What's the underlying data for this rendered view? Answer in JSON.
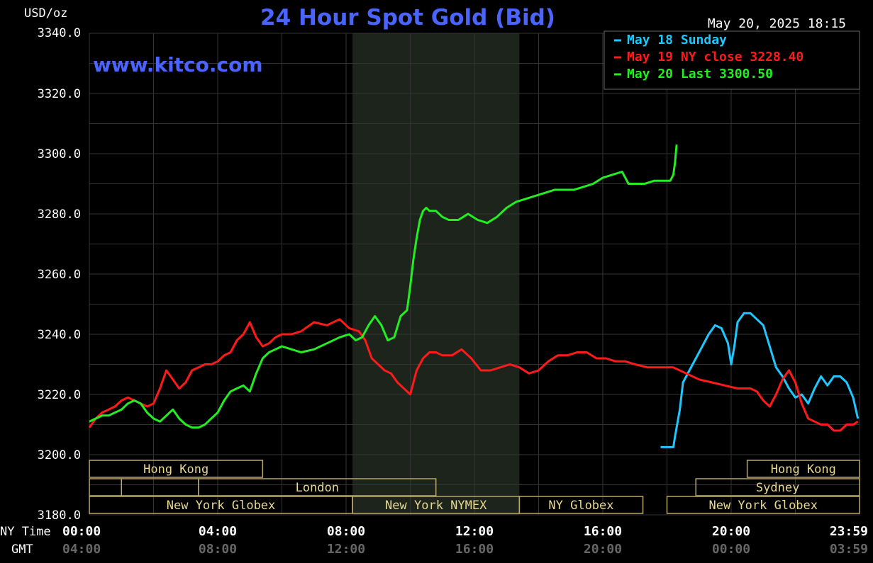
{
  "header": {
    "unit": "USD/oz",
    "title": "24 Hour Spot Gold (Bid)",
    "timestamp": "May 20, 2025 18:15",
    "watermark": "www.kitco.com"
  },
  "colors": {
    "title": "#4a64ff",
    "watermark": "#4a64ff",
    "grid": "#333333",
    "axis_text": "#ffffff",
    "gmt_text": "#666666",
    "session_border": "#b8a86a",
    "session_text": "#e8d890",
    "shade": "#1c241c"
  },
  "labels": {
    "ny_time": "NY Time",
    "gmt": "GMT"
  },
  "chart_data": {
    "type": "line",
    "title": "24 Hour Spot Gold (Bid)",
    "ylabel": "USD/oz",
    "ylim": [
      3180,
      3340
    ],
    "xlim": [
      0,
      24
    ],
    "grid": true,
    "legend_position": "top-right",
    "y_ticks": [
      "3340.0",
      "3320.0",
      "3300.0",
      "3280.0",
      "3260.0",
      "3240.0",
      "3220.0",
      "3200.0",
      "3180.0"
    ],
    "x_ticks": [
      {
        "ny": "00:00",
        "gmt": "04:00",
        "x": 0
      },
      {
        "ny": "04:00",
        "gmt": "08:00",
        "x": 4
      },
      {
        "ny": "08:00",
        "gmt": "12:00",
        "x": 8
      },
      {
        "ny": "12:00",
        "gmt": "16:00",
        "x": 12
      },
      {
        "ny": "16:00",
        "gmt": "20:00",
        "x": 16
      },
      {
        "ny": "20:00",
        "gmt": "00:00",
        "x": 20
      },
      {
        "ny": "23:59",
        "gmt": "03:59",
        "x": 24
      }
    ],
    "shaded_range": [
      8.2,
      13.4
    ],
    "series": [
      {
        "name": "May 18 Sunday",
        "color": "#1ec8ff",
        "x": [
          17.8,
          18.1,
          18.2,
          18.25,
          18.4,
          18.5,
          18.8,
          19.0,
          19.3,
          19.5,
          19.7,
          19.9,
          20.0,
          20.1,
          20.2,
          20.4,
          20.6,
          20.8,
          21.0,
          21.2,
          21.4,
          21.6,
          21.8,
          22.0,
          22.2,
          22.4,
          22.6,
          22.8,
          23.0,
          23.2,
          23.4,
          23.6,
          23.8,
          23.95
        ],
        "y": [
          3202.5,
          3202.5,
          3202.5,
          3206,
          3215,
          3224,
          3230,
          3234,
          3240,
          3243,
          3242,
          3237,
          3230,
          3236,
          3244,
          3247,
          3247,
          3245,
          3243,
          3236,
          3229,
          3226,
          3222,
          3219,
          3220,
          3217,
          3222,
          3226,
          3223,
          3226,
          3226,
          3224,
          3219,
          3212
        ]
      },
      {
        "name": "May 19 NY close 3228.40",
        "color": "#ff1a1a",
        "x": [
          0,
          0.2,
          0.4,
          0.6,
          0.8,
          1.0,
          1.2,
          1.4,
          1.6,
          1.8,
          2.0,
          2.2,
          2.4,
          2.6,
          2.8,
          3.0,
          3.2,
          3.4,
          3.6,
          3.8,
          4.0,
          4.2,
          4.4,
          4.6,
          4.8,
          5.0,
          5.2,
          5.4,
          5.6,
          5.8,
          6.0,
          6.3,
          6.6,
          7.0,
          7.4,
          7.8,
          8.1,
          8.4,
          8.6,
          8.8,
          9.0,
          9.2,
          9.4,
          9.6,
          9.8,
          10.0,
          10.2,
          10.4,
          10.6,
          10.8,
          11.0,
          11.3,
          11.6,
          11.9,
          12.2,
          12.5,
          12.8,
          13.1,
          13.4,
          13.7,
          14.0,
          14.3,
          14.6,
          14.9,
          15.2,
          15.5,
          15.8,
          16.1,
          16.4,
          16.7,
          17.0,
          17.4,
          17.8,
          18.2,
          18.6,
          19.0,
          19.4,
          19.8,
          20.2,
          20.4,
          20.6,
          20.8,
          21.0,
          21.2,
          21.4,
          21.6,
          21.8,
          22.0,
          22.2,
          22.4,
          22.6,
          22.8,
          23.0,
          23.2,
          23.4,
          23.6,
          23.8,
          23.95
        ],
        "y": [
          3209,
          3212,
          3214,
          3215,
          3216,
          3218,
          3219,
          3218,
          3217,
          3216,
          3217,
          3222,
          3228,
          3225,
          3222,
          3224,
          3228,
          3229,
          3230,
          3230,
          3231,
          3233,
          3234,
          3238,
          3240,
          3244,
          3239,
          3236,
          3237,
          3239,
          3240,
          3240,
          3241,
          3244,
          3243,
          3245,
          3242,
          3241,
          3238,
          3232,
          3230,
          3228,
          3227,
          3224,
          3222,
          3220,
          3228,
          3232,
          3234,
          3234,
          3233,
          3233,
          3235,
          3232,
          3228,
          3228,
          3229,
          3230,
          3229,
          3227,
          3228,
          3231,
          3233,
          3233,
          3234,
          3234,
          3232,
          3232,
          3231,
          3231,
          3230,
          3229,
          3229,
          3229,
          3227,
          3225,
          3224,
          3223,
          3222,
          3222,
          3222,
          3221,
          3218,
          3216,
          3220,
          3225,
          3228,
          3224,
          3217,
          3212,
          3211,
          3210,
          3210,
          3208,
          3208,
          3210,
          3210,
          3211
        ]
      },
      {
        "name": "May 20 Last 3300.50",
        "color": "#22ee22",
        "x": [
          0,
          0.2,
          0.4,
          0.6,
          0.8,
          1.0,
          1.2,
          1.4,
          1.6,
          1.8,
          2.0,
          2.2,
          2.4,
          2.6,
          2.8,
          3.0,
          3.2,
          3.4,
          3.6,
          3.8,
          4.0,
          4.2,
          4.4,
          4.6,
          4.8,
          5.0,
          5.2,
          5.4,
          5.6,
          5.8,
          6.0,
          6.3,
          6.6,
          7.0,
          7.4,
          7.8,
          8.1,
          8.3,
          8.5,
          8.7,
          8.9,
          9.1,
          9.3,
          9.5,
          9.7,
          9.9,
          10.0,
          10.1,
          10.2,
          10.3,
          10.4,
          10.5,
          10.6,
          10.8,
          11.0,
          11.2,
          11.5,
          11.8,
          12.1,
          12.4,
          12.7,
          13.0,
          13.3,
          13.6,
          13.9,
          14.2,
          14.5,
          14.8,
          15.1,
          15.4,
          15.7,
          16.0,
          16.3,
          16.6,
          16.8,
          17.0,
          17.3,
          17.6,
          17.9,
          18.1,
          18.2,
          18.25,
          18.3
        ],
        "y": [
          3211,
          3212,
          3213,
          3213,
          3214,
          3215,
          3217,
          3218,
          3217,
          3214,
          3212,
          3211,
          3213,
          3215,
          3212,
          3210,
          3209,
          3209,
          3210,
          3212,
          3214,
          3218,
          3221,
          3222,
          3223,
          3221,
          3227,
          3232,
          3234,
          3235,
          3236,
          3235,
          3234,
          3235,
          3237,
          3239,
          3240,
          3238,
          3239,
          3243,
          3246,
          3243,
          3238,
          3239,
          3246,
          3248,
          3256,
          3265,
          3272,
          3278,
          3281,
          3282,
          3281,
          3281,
          3279,
          3278,
          3278,
          3280,
          3278,
          3277,
          3279,
          3282,
          3284,
          3285,
          3286,
          3287,
          3288,
          3288,
          3288,
          3289,
          3290,
          3292,
          3293,
          3294,
          3290,
          3290,
          3290,
          3291,
          3291,
          3291,
          3293,
          3297,
          3303
        ]
      }
    ],
    "sessions": [
      {
        "label": "Hong Kong",
        "start": 0,
        "end": 5.4,
        "row": 0
      },
      {
        "label": "",
        "start": 0,
        "end": 1.0,
        "row": 1
      },
      {
        "label": "",
        "start": 1.0,
        "end": 3.4,
        "row": 1
      },
      {
        "label": "London",
        "start": 3.4,
        "end": 10.8,
        "row": 1
      },
      {
        "label": "New York Globex",
        "start": 0,
        "end": 8.2,
        "row": 2
      },
      {
        "label": "New York NYMEX",
        "start": 8.2,
        "end": 13.4,
        "row": 2
      },
      {
        "label": "NY Globex",
        "start": 13.4,
        "end": 17.25,
        "row": 2
      },
      {
        "label": "Hong Kong",
        "start": 20.5,
        "end": 24,
        "row": 0
      },
      {
        "label": "Sydney",
        "start": 18.9,
        "end": 24,
        "row": 1
      },
      {
        "label": "New York Globex",
        "start": 18.0,
        "end": 24,
        "row": 2
      }
    ]
  }
}
